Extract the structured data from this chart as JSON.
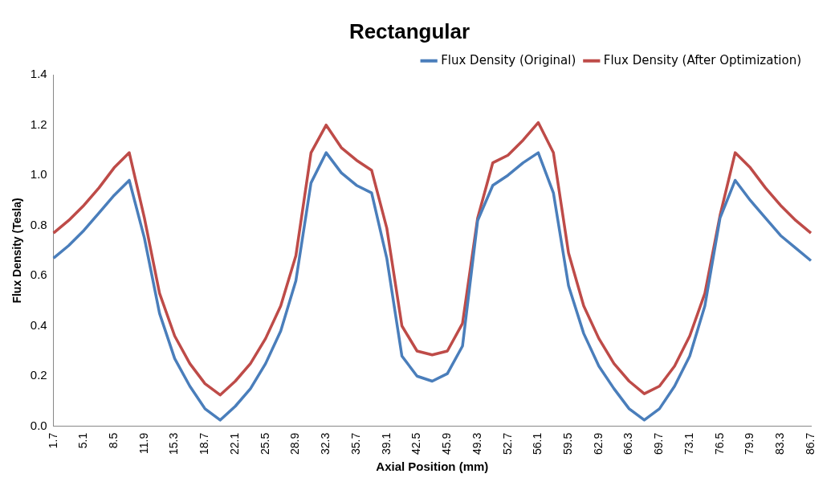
{
  "chart_data": {
    "type": "line",
    "title": "Rectangular",
    "xlabel": "Axial Position (mm)",
    "ylabel": "Flux Density (Tesla)",
    "categories": [
      "1.7",
      null,
      "5.1",
      null,
      "8.5",
      null,
      "11.9",
      null,
      "15.3",
      null,
      "18.7",
      null,
      "22.1",
      null,
      "25.5",
      null,
      "28.9",
      null,
      "32.3",
      null,
      "35.7",
      null,
      "39.1",
      null,
      "42.5",
      null,
      "45.9",
      null,
      "49.3",
      null,
      "52.7",
      null,
      "56.1",
      null,
      "59.5",
      null,
      "62.9",
      null,
      "66.3",
      null,
      "69.7",
      null,
      "73.1",
      null,
      "76.5",
      null,
      "79.9",
      null,
      "83.3",
      null,
      "86.7"
    ],
    "series": [
      {
        "name": "Flux Density (Original)",
        "color": "#4a7ebb",
        "values": [
          0.67,
          0.72,
          0.78,
          0.85,
          0.92,
          0.98,
          0.75,
          0.45,
          0.27,
          0.16,
          0.07,
          0.025,
          0.08,
          0.15,
          0.25,
          0.38,
          0.58,
          0.97,
          1.09,
          1.01,
          0.96,
          0.93,
          0.67,
          0.28,
          0.2,
          0.18,
          0.21,
          0.32,
          0.82,
          0.96,
          1.0,
          1.05,
          1.09,
          0.93,
          0.56,
          0.37,
          0.24,
          0.15,
          0.07,
          0.025,
          0.07,
          0.16,
          0.28,
          0.48,
          0.83,
          0.98,
          0.9,
          0.83,
          0.76,
          0.71,
          0.66
        ]
      },
      {
        "name": "Flux Density (After Optimization)",
        "color": "#be4b48",
        "values": [
          0.77,
          0.82,
          0.88,
          0.95,
          1.03,
          1.09,
          0.83,
          0.53,
          0.36,
          0.25,
          0.17,
          0.125,
          0.18,
          0.25,
          0.35,
          0.48,
          0.68,
          1.09,
          1.2,
          1.11,
          1.06,
          1.02,
          0.79,
          0.4,
          0.3,
          0.285,
          0.3,
          0.41,
          0.83,
          1.05,
          1.08,
          1.14,
          1.21,
          1.09,
          0.69,
          0.48,
          0.35,
          0.25,
          0.18,
          0.13,
          0.16,
          0.24,
          0.36,
          0.53,
          0.84,
          1.09,
          1.03,
          0.95,
          0.88,
          0.82,
          0.77
        ]
      }
    ],
    "ylim": [
      0,
      1.4
    ],
    "yticks": [
      {
        "value": 0,
        "label": "0.0"
      },
      {
        "value": 0.2,
        "label": "0.2"
      },
      {
        "value": 0.4,
        "label": "0.4"
      },
      {
        "value": 0.6,
        "label": "0.6"
      },
      {
        "value": 0.8,
        "label": "0.8"
      },
      {
        "value": 1,
        "label": "1.0"
      },
      {
        "value": 1.2,
        "label": "1.2"
      },
      {
        "value": 1.4,
        "label": "1.4"
      }
    ],
    "legend": "top right",
    "grid": false,
    "marker": "none",
    "line_style": "solid"
  }
}
